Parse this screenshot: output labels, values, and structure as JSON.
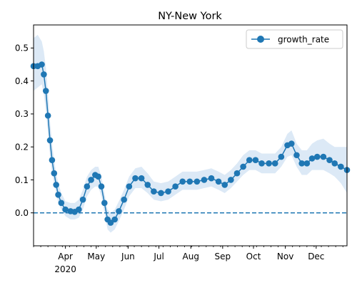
{
  "chart_data": {
    "type": "line",
    "title": "NY-New York",
    "xlabel": "",
    "ylabel": "",
    "x_axis": {
      "type": "date",
      "range": [
        "2020-03-01",
        "2020-12-31"
      ],
      "major_ticks": [
        {
          "date": "2020-04-01",
          "label": "Apr",
          "sublabel": "2020"
        },
        {
          "date": "2020-05-01",
          "label": "May"
        },
        {
          "date": "2020-06-01",
          "label": "Jun"
        },
        {
          "date": "2020-07-01",
          "label": "Jul"
        },
        {
          "date": "2020-08-01",
          "label": "Aug"
        },
        {
          "date": "2020-09-01",
          "label": "Sep"
        },
        {
          "date": "2020-10-01",
          "label": "Oct"
        },
        {
          "date": "2020-11-01",
          "label": "Nov"
        },
        {
          "date": "2020-12-01",
          "label": "Dec"
        }
      ],
      "minor_ticks": "weekly"
    },
    "y_axis": {
      "range": [
        -0.1,
        0.57
      ],
      "ticks": [
        {
          "value": 0.0,
          "label": "0.0"
        },
        {
          "value": 0.1,
          "label": "0.1"
        },
        {
          "value": 0.2,
          "label": "0.2"
        },
        {
          "value": 0.3,
          "label": "0.3"
        },
        {
          "value": 0.4,
          "label": "0.4"
        },
        {
          "value": 0.5,
          "label": "0.5"
        }
      ]
    },
    "grid": false,
    "legend": {
      "placement": "top-right",
      "entries": [
        "growth_rate"
      ]
    },
    "reference_line": {
      "y": 0.0,
      "style": "dashed",
      "color": "#1f77b4"
    },
    "band_color": "#dce9f6",
    "series": [
      {
        "name": "growth_rate",
        "color": "#1f77b4",
        "marker": "circle",
        "points": [
          {
            "date": "2020-03-01",
            "y": 0.445,
            "lo": 0.37,
            "hi": 0.53
          },
          {
            "date": "2020-03-05",
            "y": 0.445,
            "lo": 0.38,
            "hi": 0.54
          },
          {
            "date": "2020-03-09",
            "y": 0.45,
            "lo": 0.39,
            "hi": 0.52
          },
          {
            "date": "2020-03-11",
            "y": 0.42,
            "lo": 0.36,
            "hi": 0.49
          },
          {
            "date": "2020-03-13",
            "y": 0.37,
            "lo": 0.31,
            "hi": 0.44
          },
          {
            "date": "2020-03-15",
            "y": 0.295,
            "lo": 0.24,
            "hi": 0.36
          },
          {
            "date": "2020-03-17",
            "y": 0.22,
            "lo": 0.17,
            "hi": 0.28
          },
          {
            "date": "2020-03-19",
            "y": 0.16,
            "lo": 0.12,
            "hi": 0.21
          },
          {
            "date": "2020-03-21",
            "y": 0.12,
            "lo": 0.09,
            "hi": 0.16
          },
          {
            "date": "2020-03-23",
            "y": 0.085,
            "lo": 0.06,
            "hi": 0.12
          },
          {
            "date": "2020-03-25",
            "y": 0.055,
            "lo": 0.03,
            "hi": 0.09
          },
          {
            "date": "2020-03-28",
            "y": 0.03,
            "lo": 0.01,
            "hi": 0.06
          },
          {
            "date": "2020-04-01",
            "y": 0.01,
            "lo": -0.01,
            "hi": 0.035
          },
          {
            "date": "2020-04-06",
            "y": 0.005,
            "lo": -0.02,
            "hi": 0.03
          },
          {
            "date": "2020-04-10",
            "y": 0.003,
            "lo": -0.02,
            "hi": 0.03
          },
          {
            "date": "2020-04-14",
            "y": 0.01,
            "lo": -0.015,
            "hi": 0.04
          },
          {
            "date": "2020-04-18",
            "y": 0.04,
            "lo": 0.01,
            "hi": 0.07
          },
          {
            "date": "2020-04-22",
            "y": 0.08,
            "lo": 0.05,
            "hi": 0.11
          },
          {
            "date": "2020-04-26",
            "y": 0.1,
            "lo": 0.07,
            "hi": 0.13
          },
          {
            "date": "2020-04-30",
            "y": 0.115,
            "lo": 0.08,
            "hi": 0.14
          },
          {
            "date": "2020-05-03",
            "y": 0.11,
            "lo": 0.08,
            "hi": 0.14
          },
          {
            "date": "2020-05-06",
            "y": 0.08,
            "lo": 0.05,
            "hi": 0.11
          },
          {
            "date": "2020-05-09",
            "y": 0.03,
            "lo": 0.0,
            "hi": 0.06
          },
          {
            "date": "2020-05-12",
            "y": -0.02,
            "lo": -0.05,
            "hi": 0.01
          },
          {
            "date": "2020-05-15",
            "y": -0.03,
            "lo": -0.06,
            "hi": 0.0
          },
          {
            "date": "2020-05-19",
            "y": -0.02,
            "lo": -0.05,
            "hi": 0.01
          },
          {
            "date": "2020-05-23",
            "y": 0.005,
            "lo": -0.025,
            "hi": 0.035
          },
          {
            "date": "2020-05-28",
            "y": 0.04,
            "lo": 0.01,
            "hi": 0.07
          },
          {
            "date": "2020-06-02",
            "y": 0.08,
            "lo": 0.05,
            "hi": 0.11
          },
          {
            "date": "2020-06-08",
            "y": 0.105,
            "lo": 0.075,
            "hi": 0.135
          },
          {
            "date": "2020-06-14",
            "y": 0.105,
            "lo": 0.075,
            "hi": 0.14
          },
          {
            "date": "2020-06-20",
            "y": 0.085,
            "lo": 0.06,
            "hi": 0.12
          },
          {
            "date": "2020-06-26",
            "y": 0.065,
            "lo": 0.04,
            "hi": 0.095
          },
          {
            "date": "2020-07-03",
            "y": 0.06,
            "lo": 0.035,
            "hi": 0.09
          },
          {
            "date": "2020-07-10",
            "y": 0.065,
            "lo": 0.04,
            "hi": 0.095
          },
          {
            "date": "2020-07-17",
            "y": 0.08,
            "lo": 0.055,
            "hi": 0.11
          },
          {
            "date": "2020-07-24",
            "y": 0.095,
            "lo": 0.07,
            "hi": 0.125
          },
          {
            "date": "2020-07-31",
            "y": 0.095,
            "lo": 0.07,
            "hi": 0.125
          },
          {
            "date": "2020-08-07",
            "y": 0.095,
            "lo": 0.07,
            "hi": 0.125
          },
          {
            "date": "2020-08-14",
            "y": 0.1,
            "lo": 0.075,
            "hi": 0.13
          },
          {
            "date": "2020-08-21",
            "y": 0.105,
            "lo": 0.08,
            "hi": 0.135
          },
          {
            "date": "2020-08-28",
            "y": 0.095,
            "lo": 0.07,
            "hi": 0.125
          },
          {
            "date": "2020-09-03",
            "y": 0.085,
            "lo": 0.06,
            "hi": 0.115
          },
          {
            "date": "2020-09-09",
            "y": 0.1,
            "lo": 0.075,
            "hi": 0.13
          },
          {
            "date": "2020-09-15",
            "y": 0.12,
            "lo": 0.095,
            "hi": 0.15
          },
          {
            "date": "2020-09-21",
            "y": 0.14,
            "lo": 0.115,
            "hi": 0.175
          },
          {
            "date": "2020-09-27",
            "y": 0.16,
            "lo": 0.13,
            "hi": 0.19
          },
          {
            "date": "2020-10-03",
            "y": 0.16,
            "lo": 0.13,
            "hi": 0.19
          },
          {
            "date": "2020-10-09",
            "y": 0.15,
            "lo": 0.12,
            "hi": 0.18
          },
          {
            "date": "2020-10-16",
            "y": 0.15,
            "lo": 0.12,
            "hi": 0.18
          },
          {
            "date": "2020-10-22",
            "y": 0.15,
            "lo": 0.12,
            "hi": 0.18
          },
          {
            "date": "2020-10-28",
            "y": 0.17,
            "lo": 0.14,
            "hi": 0.2
          },
          {
            "date": "2020-11-03",
            "y": 0.205,
            "lo": 0.17,
            "hi": 0.24
          },
          {
            "date": "2020-11-07",
            "y": 0.21,
            "lo": 0.175,
            "hi": 0.25
          },
          {
            "date": "2020-11-12",
            "y": 0.175,
            "lo": 0.14,
            "hi": 0.21
          },
          {
            "date": "2020-11-17",
            "y": 0.15,
            "lo": 0.115,
            "hi": 0.19
          },
          {
            "date": "2020-11-22",
            "y": 0.15,
            "lo": 0.115,
            "hi": 0.19
          },
          {
            "date": "2020-11-27",
            "y": 0.165,
            "lo": 0.13,
            "hi": 0.21
          },
          {
            "date": "2020-12-02",
            "y": 0.17,
            "lo": 0.13,
            "hi": 0.22
          },
          {
            "date": "2020-12-08",
            "y": 0.17,
            "lo": 0.13,
            "hi": 0.225
          },
          {
            "date": "2020-12-14",
            "y": 0.16,
            "lo": 0.12,
            "hi": 0.21
          },
          {
            "date": "2020-12-19",
            "y": 0.15,
            "lo": 0.11,
            "hi": 0.2
          },
          {
            "date": "2020-12-25",
            "y": 0.14,
            "lo": 0.09,
            "hi": 0.2
          },
          {
            "date": "2020-12-31",
            "y": 0.13,
            "lo": 0.06,
            "hi": 0.2
          }
        ]
      }
    ]
  }
}
